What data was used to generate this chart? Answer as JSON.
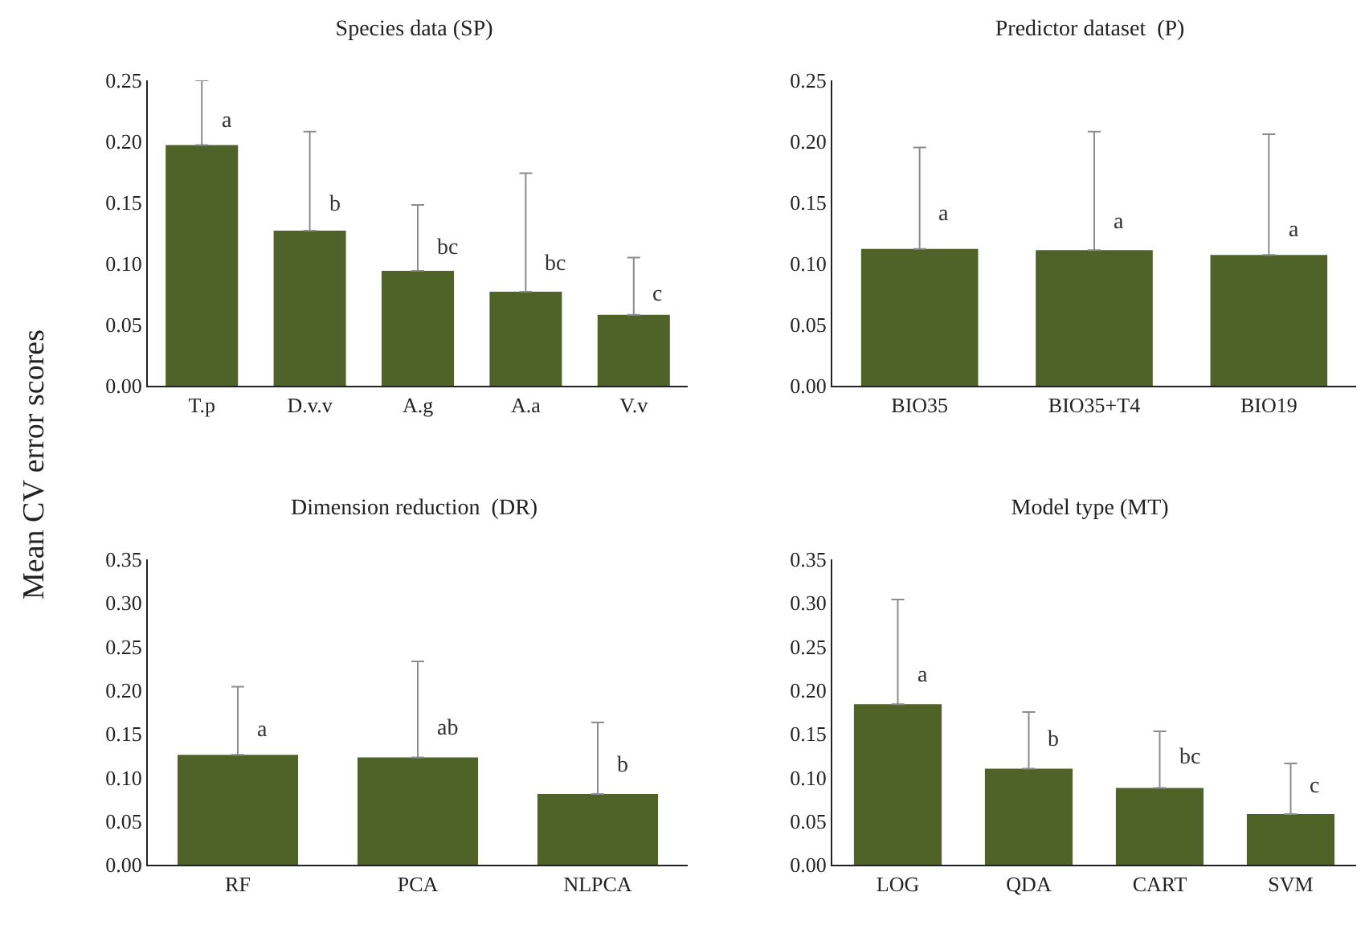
{
  "chart_data": [
    {
      "type": "bar",
      "title": "Species data (SP)",
      "ylabel": "Mean CV error scores",
      "categories": [
        "T.p",
        "D.v.v",
        "A.g",
        "A.a",
        "V.v"
      ],
      "series": [
        {
          "color": "#4f6228",
          "values": [
            0.197,
            0.127,
            0.094,
            0.077,
            0.058
          ],
          "errors": [
            [
              0.197,
              0.25
            ],
            [
              0.127,
              0.208
            ],
            [
              0.094,
              0.148
            ],
            [
              0.077,
              0.174
            ],
            [
              0.058,
              0.105
            ]
          ]
        }
      ],
      "ylim": [
        0,
        0.25
      ],
      "yticks": [
        {
          "value": 0,
          "label": "0.00"
        },
        {
          "value": 0.05,
          "label": "0.05"
        },
        {
          "value": 0.1,
          "label": "0.10"
        },
        {
          "value": 0.15,
          "label": "0.15"
        },
        {
          "value": 0.2,
          "label": "0.20"
        },
        {
          "value": 0.25,
          "label": "0.25"
        }
      ],
      "grid": false,
      "annotations": [
        {
          "text": "a",
          "x": "T.p",
          "y": 0.216
        },
        {
          "text": "b",
          "x": "D.v.v",
          "y": 0.148
        },
        {
          "text": "bc",
          "x": "A.g",
          "y": 0.113
        },
        {
          "text": "bc",
          "x": "A.a",
          "y": 0.099
        },
        {
          "text": "c",
          "x": "V.v",
          "y": 0.075
        }
      ]
    },
    {
      "type": "bar",
      "title": "Predictor dataset  (P)",
      "categories": [
        "BIO35",
        "BIO35+T4",
        "BIO19"
      ],
      "series": [
        {
          "color": "#4f6228",
          "values": [
            0.112,
            0.111,
            0.107
          ],
          "errors": [
            [
              0.112,
              0.195
            ],
            [
              0.111,
              0.208
            ],
            [
              0.107,
              0.206
            ]
          ]
        }
      ],
      "ylim": [
        0,
        0.25
      ],
      "yticks": [
        {
          "value": 0,
          "label": "0.00"
        },
        {
          "value": 0.05,
          "label": "0.05"
        },
        {
          "value": 0.1,
          "label": "0.10"
        },
        {
          "value": 0.15,
          "label": "0.15"
        },
        {
          "value": 0.2,
          "label": "0.20"
        },
        {
          "value": 0.25,
          "label": "0.25"
        }
      ],
      "grid": false,
      "annotations": [
        {
          "text": "a",
          "x": "BIO35",
          "y": 0.14
        },
        {
          "text": "a",
          "x": "BIO35+T4",
          "y": 0.133
        },
        {
          "text": "a",
          "x": "BIO19",
          "y": 0.127
        }
      ]
    },
    {
      "type": "bar",
      "title": "Dimension reduction  (DR)",
      "categories": [
        "RF",
        "PCA",
        "NLPCA"
      ],
      "series": [
        {
          "color": "#4f6228",
          "values": [
            0.126,
            0.123,
            0.081
          ],
          "errors": [
            [
              0.126,
              0.204
            ],
            [
              0.123,
              0.233
            ],
            [
              0.081,
              0.163
            ]
          ]
        }
      ],
      "ylim": [
        0,
        0.35
      ],
      "yticks": [
        {
          "value": 0,
          "label": "0.00"
        },
        {
          "value": 0.05,
          "label": "0.05"
        },
        {
          "value": 0.1,
          "label": "0.10"
        },
        {
          "value": 0.15,
          "label": "0.15"
        },
        {
          "value": 0.2,
          "label": "0.20"
        },
        {
          "value": 0.25,
          "label": "0.25"
        },
        {
          "value": 0.3,
          "label": "0.30"
        },
        {
          "value": 0.35,
          "label": "0.35"
        }
      ],
      "grid": false,
      "annotations": [
        {
          "text": "a",
          "x": "RF",
          "y": 0.154
        },
        {
          "text": "ab",
          "x": "PCA",
          "y": 0.155
        },
        {
          "text": "b",
          "x": "NLPCA",
          "y": 0.113
        }
      ]
    },
    {
      "type": "bar",
      "title": "Model type (MT)",
      "categories": [
        "LOG",
        "QDA",
        "CART",
        "SVM"
      ],
      "series": [
        {
          "color": "#4f6228",
          "values": [
            0.184,
            0.11,
            0.088,
            0.058
          ],
          "errors": [
            [
              0.184,
              0.304
            ],
            [
              0.11,
              0.175
            ],
            [
              0.088,
              0.153
            ],
            [
              0.058,
              0.116
            ]
          ]
        }
      ],
      "ylim": [
        0,
        0.35
      ],
      "yticks": [
        {
          "value": 0,
          "label": "0.00"
        },
        {
          "value": 0.05,
          "label": "0.05"
        },
        {
          "value": 0.1,
          "label": "0.10"
        },
        {
          "value": 0.15,
          "label": "0.15"
        },
        {
          "value": 0.2,
          "label": "0.20"
        },
        {
          "value": 0.25,
          "label": "0.25"
        },
        {
          "value": 0.3,
          "label": "0.30"
        },
        {
          "value": 0.35,
          "label": "0.35"
        }
      ],
      "grid": false,
      "annotations": [
        {
          "text": "a",
          "x": "LOG",
          "y": 0.216
        },
        {
          "text": "b",
          "x": "QDA",
          "y": 0.143
        },
        {
          "text": "bc",
          "x": "CART",
          "y": 0.123
        },
        {
          "text": "c",
          "x": "SVM",
          "y": 0.09
        }
      ]
    }
  ]
}
